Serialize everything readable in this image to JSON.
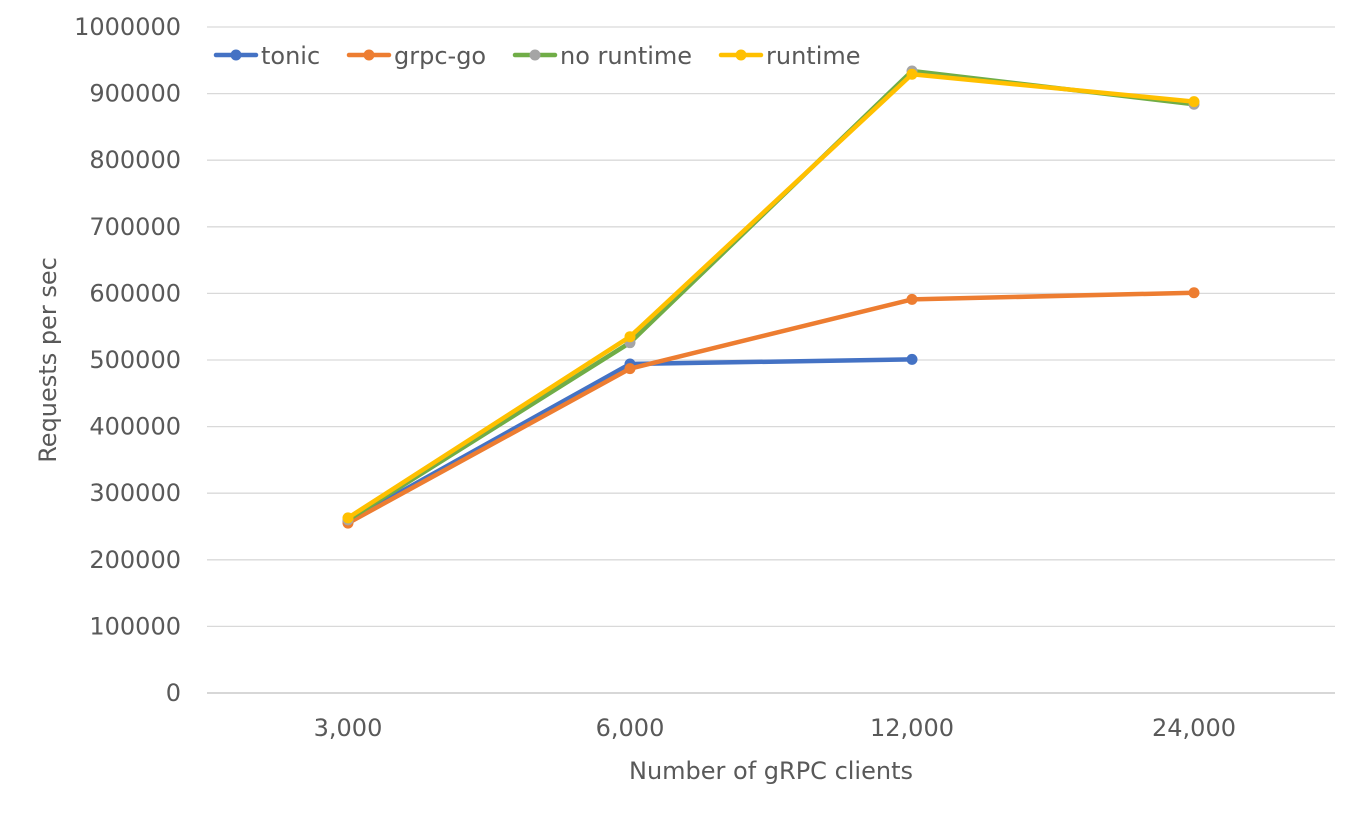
{
  "chart_data": {
    "type": "line",
    "title": "",
    "xlabel": "Number of gRPC clients",
    "ylabel": "Requests per sec",
    "categories": [
      "3,000",
      "6,000",
      "12,000",
      "24,000"
    ],
    "ylim": [
      0,
      1000000
    ],
    "yticks": [
      "0",
      "100000",
      "200000",
      "300000",
      "400000",
      "500000",
      "600000",
      "700000",
      "800000",
      "900000",
      "1000000"
    ],
    "grid": true,
    "legend_position": "top-left",
    "series": [
      {
        "name": "tonic",
        "color": "#4472C4",
        "values": [
          258000,
          494000,
          501000,
          null
        ]
      },
      {
        "name": "grpc-go",
        "color": "#ED7D31",
        "values": [
          255000,
          487000,
          591000,
          601000
        ]
      },
      {
        "name": "no runtime",
        "color": "#70AD47",
        "marker_color": "#A5A5A5",
        "values": [
          260000,
          526000,
          934000,
          884000
        ]
      },
      {
        "name": "runtime",
        "color": "#FFC000",
        "values": [
          263000,
          535000,
          929000,
          888000
        ]
      }
    ]
  }
}
